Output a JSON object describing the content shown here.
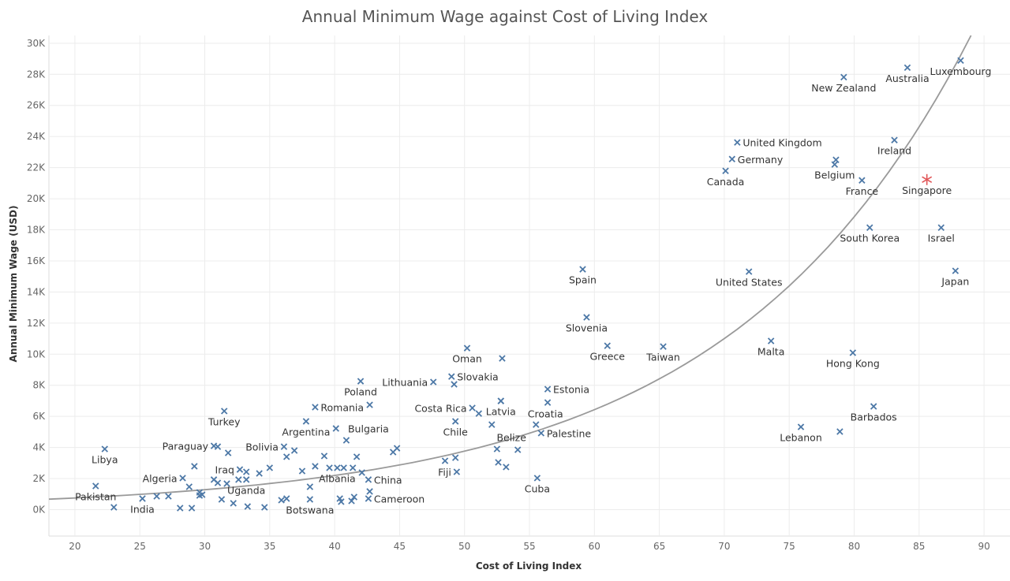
{
  "chart_data": {
    "type": "scatter",
    "title": "Annual Minimum Wage against Cost of Living Index",
    "xlabel": "Cost of Living Index",
    "ylabel": "Annual Minimum Wage (USD)",
    "xlim": [
      18,
      92
    ],
    "ylim": [
      -1700,
      30500
    ],
    "xticks": [
      20,
      25,
      30,
      35,
      40,
      45,
      50,
      55,
      60,
      65,
      70,
      75,
      80,
      85,
      90
    ],
    "yticks": [
      0,
      2000,
      4000,
      6000,
      8000,
      10000,
      12000,
      14000,
      16000,
      18000,
      20000,
      22000,
      24000,
      26000,
      28000,
      30000
    ],
    "ytick_labels": [
      "0K",
      "2K",
      "4K",
      "6K",
      "8K",
      "10K",
      "12K",
      "14K",
      "16K",
      "18K",
      "20K",
      "22K",
      "24K",
      "26K",
      "28K",
      "30K"
    ],
    "grid": true,
    "colors": {
      "marker": "#4e79a7",
      "highlight": "#e15759",
      "trend": "#9a9a9a"
    },
    "marker": "x",
    "highlight_marker": "asterisk",
    "trend_line": {
      "type": "exponential",
      "points": [
        [
          18,
          674
        ],
        [
          30,
          1284
        ],
        [
          40,
          2198
        ],
        [
          50,
          3760
        ],
        [
          60,
          6430
        ],
        [
          70,
          11000
        ],
        [
          80,
          18830
        ],
        [
          89,
          30500
        ]
      ]
    },
    "points": [
      {
        "x": 21.6,
        "y": 1520,
        "label": "Pakistan",
        "pos": "below"
      },
      {
        "x": 23.0,
        "y": 150
      },
      {
        "x": 22.3,
        "y": 3900,
        "label": "Libya",
        "pos": "below"
      },
      {
        "x": 25.2,
        "y": 710,
        "label": "India",
        "pos": "below"
      },
      {
        "x": 26.3,
        "y": 860
      },
      {
        "x": 27.2,
        "y": 860
      },
      {
        "x": 28.1,
        "y": 100
      },
      {
        "x": 29.0,
        "y": 100
      },
      {
        "x": 28.3,
        "y": 2030,
        "label": "Algeria",
        "pos": "left"
      },
      {
        "x": 29.2,
        "y": 2790
      },
      {
        "x": 28.8,
        "y": 1470
      },
      {
        "x": 29.6,
        "y": 1110
      },
      {
        "x": 29.6,
        "y": 910
      },
      {
        "x": 29.8,
        "y": 960
      },
      {
        "x": 30.7,
        "y": 4100,
        "label": "Paraguay",
        "pos": "left"
      },
      {
        "x": 31.0,
        "y": 4050
      },
      {
        "x": 31.8,
        "y": 3650
      },
      {
        "x": 31.5,
        "y": 6340,
        "label": "Turkey",
        "pos": "below"
      },
      {
        "x": 30.7,
        "y": 1930
      },
      {
        "x": 31.0,
        "y": 1720
      },
      {
        "x": 31.7,
        "y": 1670
      },
      {
        "x": 31.3,
        "y": 660
      },
      {
        "x": 32.2,
        "y": 410
      },
      {
        "x": 32.7,
        "y": 2580,
        "label": "Iraq",
        "pos": "left"
      },
      {
        "x": 33.2,
        "y": 2430
      },
      {
        "x": 32.6,
        "y": 1930
      },
      {
        "x": 33.2,
        "y": 1930,
        "label": "Uganda",
        "pos": "below"
      },
      {
        "x": 33.3,
        "y": 200
      },
      {
        "x": 34.2,
        "y": 2330
      },
      {
        "x": 34.6,
        "y": 150
      },
      {
        "x": 35.0,
        "y": 2690
      },
      {
        "x": 35.9,
        "y": 610
      },
      {
        "x": 36.3,
        "y": 710
      },
      {
        "x": 36.1,
        "y": 4050,
        "label": "Bolivia",
        "pos": "left"
      },
      {
        "x": 36.3,
        "y": 3400
      },
      {
        "x": 36.9,
        "y": 3800
      },
      {
        "x": 37.5,
        "y": 2480
      },
      {
        "x": 37.8,
        "y": 5680,
        "label": "Argentina",
        "pos": "below"
      },
      {
        "x": 38.1,
        "y": 1470
      },
      {
        "x": 38.1,
        "y": 660,
        "label": "Botswana",
        "pos": "below"
      },
      {
        "x": 38.5,
        "y": 6590,
        "label": "Romania",
        "pos": "right"
      },
      {
        "x": 38.5,
        "y": 2790
      },
      {
        "x": 39.2,
        "y": 3450
      },
      {
        "x": 39.6,
        "y": 2690
      },
      {
        "x": 40.1,
        "y": 5220
      },
      {
        "x": 40.2,
        "y": 2690,
        "label": "Albania",
        "pos": "below"
      },
      {
        "x": 40.7,
        "y": 2690
      },
      {
        "x": 40.9,
        "y": 4460,
        "label": "Bulgaria",
        "pos": "aboveright"
      },
      {
        "x": 41.4,
        "y": 2690
      },
      {
        "x": 41.7,
        "y": 3400
      },
      {
        "x": 42.1,
        "y": 2380
      },
      {
        "x": 42.6,
        "y": 1930,
        "label": "China",
        "pos": "right"
      },
      {
        "x": 42.7,
        "y": 6740
      },
      {
        "x": 42.7,
        "y": 1170
      },
      {
        "x": 40.4,
        "y": 710
      },
      {
        "x": 40.5,
        "y": 510
      },
      {
        "x": 41.3,
        "y": 560
      },
      {
        "x": 41.5,
        "y": 810
      },
      {
        "x": 42.6,
        "y": 710,
        "label": "Cameroon",
        "pos": "right"
      },
      {
        "x": 44.5,
        "y": 3700
      },
      {
        "x": 44.8,
        "y": 3950
      },
      {
        "x": 50.2,
        "y": 10390,
        "label": "Oman",
        "pos": "below"
      },
      {
        "x": 52.9,
        "y": 9730
      },
      {
        "x": 61.0,
        "y": 10540,
        "label": "Greece",
        "pos": "below"
      },
      {
        "x": 42.0,
        "y": 8260,
        "label": "Poland",
        "pos": "below"
      },
      {
        "x": 47.6,
        "y": 8210,
        "label": "Lithuania",
        "pos": "left"
      },
      {
        "x": 49.0,
        "y": 8560,
        "label": "Slovakia",
        "pos": "right"
      },
      {
        "x": 49.2,
        "y": 8060
      },
      {
        "x": 56.4,
        "y": 7750,
        "label": "Estonia",
        "pos": "right"
      },
      {
        "x": 52.8,
        "y": 6990
      },
      {
        "x": 56.4,
        "y": 6890
      },
      {
        "x": 50.6,
        "y": 6540,
        "label": "Costa Rica",
        "pos": "left"
      },
      {
        "x": 51.1,
        "y": 6180
      },
      {
        "x": 49.3,
        "y": 5680,
        "label": "Chile",
        "pos": "below"
      },
      {
        "x": 52.8,
        "y": 6990,
        "label": "Latvia",
        "pos": "below"
      },
      {
        "x": 52.1,
        "y": 5470
      },
      {
        "x": 55.5,
        "y": 5470,
        "label": "Croatia",
        "pos": "above"
      },
      {
        "x": 55.9,
        "y": 4920,
        "label": "Palestine",
        "pos": "right"
      },
      {
        "x": 48.5,
        "y": 3140
      },
      {
        "x": 49.3,
        "y": 3340
      },
      {
        "x": 49.4,
        "y": 2430,
        "label": "Fiji",
        "pos": "left"
      },
      {
        "x": 52.5,
        "y": 3900
      },
      {
        "x": 54.1,
        "y": 3850,
        "label": "Belize",
        "pos": "aboveleft"
      },
      {
        "x": 52.6,
        "y": 3040
      },
      {
        "x": 53.2,
        "y": 2740
      },
      {
        "x": 55.6,
        "y": 2030,
        "label": "Cuba",
        "pos": "below"
      },
      {
        "x": 59.1,
        "y": 15460,
        "label": "Spain",
        "pos": "below"
      },
      {
        "x": 59.4,
        "y": 12370,
        "label": "Slovenia",
        "pos": "below"
      },
      {
        "x": 65.3,
        "y": 10490,
        "label": "Taiwan",
        "pos": "below"
      },
      {
        "x": 71.9,
        "y": 15310,
        "label": "United States",
        "pos": "below"
      },
      {
        "x": 73.6,
        "y": 10850,
        "label": "Malta",
        "pos": "below"
      },
      {
        "x": 79.9,
        "y": 10090,
        "label": "Hong Kong",
        "pos": "below"
      },
      {
        "x": 75.9,
        "y": 5320,
        "label": "Lebanon",
        "pos": "below"
      },
      {
        "x": 78.9,
        "y": 5020
      },
      {
        "x": 81.5,
        "y": 6640,
        "label": "Barbados",
        "pos": "below"
      },
      {
        "x": 87.8,
        "y": 15360,
        "label": "Japan",
        "pos": "below"
      },
      {
        "x": 86.7,
        "y": 18140,
        "label": "Israel",
        "pos": "below"
      },
      {
        "x": 81.2,
        "y": 18140,
        "label": "South Korea",
        "pos": "below"
      },
      {
        "x": 80.6,
        "y": 21180,
        "label": "France",
        "pos": "below"
      },
      {
        "x": 78.6,
        "y": 22500
      },
      {
        "x": 78.5,
        "y": 22200,
        "label": "Belgium",
        "pos": "below"
      },
      {
        "x": 70.1,
        "y": 21790,
        "label": "Canada",
        "pos": "below"
      },
      {
        "x": 70.6,
        "y": 22550,
        "label": "Germany",
        "pos": "right"
      },
      {
        "x": 71.0,
        "y": 23620,
        "label": "United Kingdom",
        "pos": "right"
      },
      {
        "x": 83.1,
        "y": 23770,
        "label": "Ireland",
        "pos": "below"
      },
      {
        "x": 79.2,
        "y": 27820,
        "label": "New Zealand",
        "pos": "below"
      },
      {
        "x": 84.1,
        "y": 28430,
        "label": "Australia",
        "pos": "below"
      },
      {
        "x": 88.2,
        "y": 28890,
        "label": "Luxembourg",
        "pos": "below"
      },
      {
        "x": 85.6,
        "y": 21230,
        "label": "Singapore",
        "pos": "below",
        "highlight": true
      }
    ]
  }
}
